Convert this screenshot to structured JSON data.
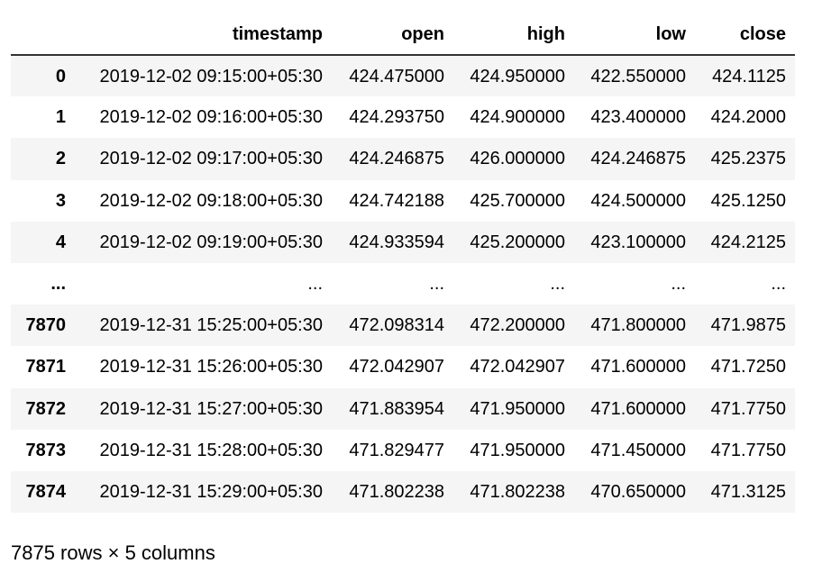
{
  "table": {
    "columns": [
      "",
      "timestamp",
      "open",
      "high",
      "low",
      "close"
    ],
    "rows": [
      {
        "index": "0",
        "timestamp": "2019-12-02 09:15:00+05:30",
        "open": "424.475000",
        "high": "424.950000",
        "low": "422.550000",
        "close": "424.1125"
      },
      {
        "index": "1",
        "timestamp": "2019-12-02 09:16:00+05:30",
        "open": "424.293750",
        "high": "424.900000",
        "low": "423.400000",
        "close": "424.2000"
      },
      {
        "index": "2",
        "timestamp": "2019-12-02 09:17:00+05:30",
        "open": "424.246875",
        "high": "426.000000",
        "low": "424.246875",
        "close": "425.2375"
      },
      {
        "index": "3",
        "timestamp": "2019-12-02 09:18:00+05:30",
        "open": "424.742188",
        "high": "425.700000",
        "low": "424.500000",
        "close": "425.1250"
      },
      {
        "index": "4",
        "timestamp": "2019-12-02 09:19:00+05:30",
        "open": "424.933594",
        "high": "425.200000",
        "low": "423.100000",
        "close": "424.2125"
      },
      {
        "index": "...",
        "timestamp": "...",
        "open": "...",
        "high": "...",
        "low": "...",
        "close": "..."
      },
      {
        "index": "7870",
        "timestamp": "2019-12-31 15:25:00+05:30",
        "open": "472.098314",
        "high": "472.200000",
        "low": "471.800000",
        "close": "471.9875"
      },
      {
        "index": "7871",
        "timestamp": "2019-12-31 15:26:00+05:30",
        "open": "472.042907",
        "high": "472.042907",
        "low": "471.600000",
        "close": "471.7250"
      },
      {
        "index": "7872",
        "timestamp": "2019-12-31 15:27:00+05:30",
        "open": "471.883954",
        "high": "471.950000",
        "low": "471.600000",
        "close": "471.7750"
      },
      {
        "index": "7873",
        "timestamp": "2019-12-31 15:28:00+05:30",
        "open": "471.829477",
        "high": "471.950000",
        "low": "471.450000",
        "close": "471.7750"
      },
      {
        "index": "7874",
        "timestamp": "2019-12-31 15:29:00+05:30",
        "open": "471.802238",
        "high": "471.802238",
        "low": "470.650000",
        "close": "471.3125"
      }
    ]
  },
  "footer": {
    "shape_text": "7875 rows × 5 columns"
  },
  "colors": {
    "stripe": "#f5f5f5",
    "header_rule": "#333333",
    "text": "#000000",
    "background": "#ffffff"
  }
}
